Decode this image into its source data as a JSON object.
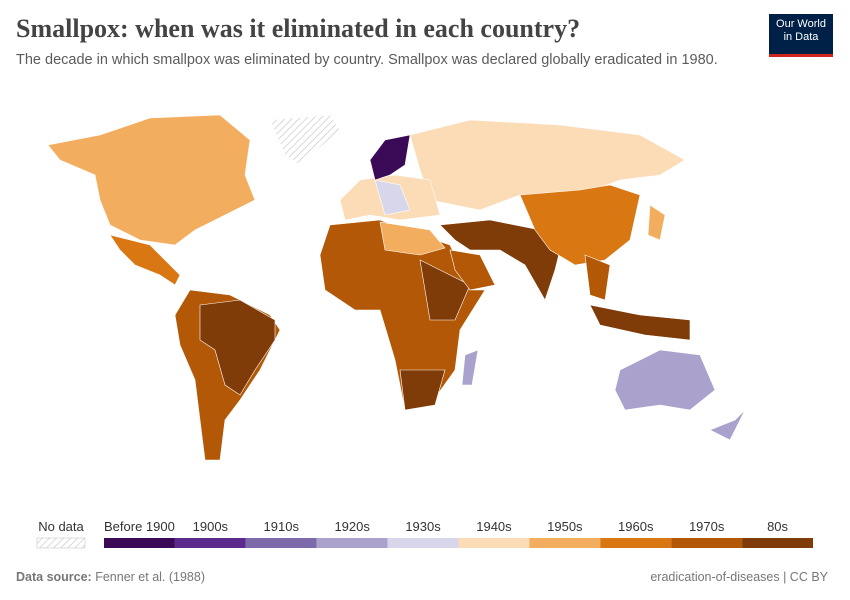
{
  "header": {
    "title": "Smallpox: when was it eliminated in each country?",
    "subtitle": "The decade in which smallpox was eliminated by country. Smallpox was declared globally eradicated in 1980.",
    "logo": [
      "Our World",
      "in Data"
    ]
  },
  "legend": {
    "no_data": "No data",
    "items": [
      {
        "label": "Before 1900",
        "color": "#3a0a56"
      },
      {
        "label": "1900s",
        "color": "#5b2a8c"
      },
      {
        "label": "1910s",
        "color": "#7d6aaa"
      },
      {
        "label": "1920s",
        "color": "#aaa2cd"
      },
      {
        "label": "1930s",
        "color": "#d8d6ea"
      },
      {
        "label": "1940s",
        "color": "#fcdcb6"
      },
      {
        "label": "1950s",
        "color": "#f3ad5e"
      },
      {
        "label": "1960s",
        "color": "#d97812"
      },
      {
        "label": "1970s",
        "color": "#b35806"
      },
      {
        "label": "80s",
        "color": "#7f3b08"
      }
    ]
  },
  "footer": {
    "source_label": "Data source:",
    "source": "Fenner et al. (1988)",
    "right": "eradication-of-diseases | CC BY"
  }
}
